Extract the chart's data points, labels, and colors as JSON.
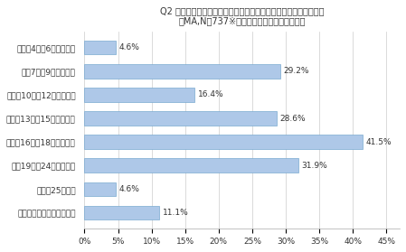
{
  "title_line1": "Q2 あなたが自転車事故に遭いそうになった時間帯はいつですか？",
  "title_line2": "（MA,N＝737※運転中・歩行中未遂経験者）",
  "categories": [
    "早朝（4時～6時くらい）",
    "朝（7時～9時くらい）",
    "午前（10時～12時くらい）",
    "午後（13時～15時くらい）",
    "夕方（16時～18時くらい）",
    "夜（19時～24時くらい）",
    "深夜（25時～）",
    "わからない・覚えていない"
  ],
  "values": [
    4.6,
    29.2,
    16.4,
    28.6,
    41.5,
    31.9,
    4.6,
    11.1
  ],
  "bar_color": "#aec8e8",
  "bar_edge_color": "#7aaad0",
  "bg_color": "#ffffff",
  "text_color": "#333333",
  "title_fontsize": 7.0,
  "label_fontsize": 6.5,
  "tick_fontsize": 6.5,
  "value_fontsize": 6.5,
  "xlim": [
    0,
    47
  ],
  "xticks": [
    0,
    5,
    10,
    15,
    20,
    25,
    30,
    35,
    40,
    45
  ]
}
